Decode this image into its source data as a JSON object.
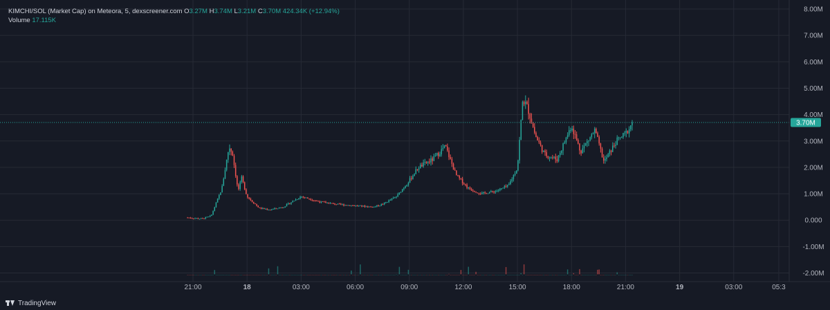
{
  "legend": {
    "symbol": "KIMCHI/SOL (Market Cap) on Meteora, 5, dexscreener.com",
    "o_label": "O",
    "o_value": "3.27M",
    "h_label": "H",
    "h_value": "3.74M",
    "l_label": "L",
    "l_value": "3.21M",
    "c_label": "C",
    "c_value": "3.70M",
    "change": "424.34K (+12.94%)",
    "volume_label": "Volume",
    "volume_value": "17.115K"
  },
  "footer": {
    "brand": "TradingView",
    "icon": "tradingview-logo-icon"
  },
  "colors": {
    "background": "#161a25",
    "grid": "#262a35",
    "up": "#26a69a",
    "down": "#ef5350",
    "axis_text": "#b2b5be",
    "price_tag": "#26a69a"
  },
  "chart_data": {
    "type": "candlestick",
    "current_price_label": "3.70M",
    "current_price": 3.7,
    "y_ticks": [
      "8.00M",
      "7.00M",
      "6.00M",
      "5.00M",
      "4.00M",
      "3.00M",
      "2.00M",
      "1.00M",
      "0.000",
      "-1.00M",
      "-2.00M"
    ],
    "y_tick_values": [
      8,
      7,
      6,
      5,
      4,
      3,
      2,
      1,
      0,
      -1,
      -2
    ],
    "ylim": [
      -2.2,
      8.2
    ],
    "x_ticks": [
      "21:00",
      "18",
      "03:00",
      "06:00",
      "09:00",
      "12:00",
      "15:00",
      "18:00",
      "21:00",
      "19",
      "03:00",
      "05:3"
    ],
    "x_tick_bold": [
      false,
      true,
      false,
      false,
      false,
      false,
      false,
      false,
      false,
      true,
      false,
      false
    ],
    "x_tick_hours": [
      0,
      3,
      6,
      9,
      12,
      15,
      18,
      21,
      24,
      27,
      30,
      32.5
    ],
    "price_anchors": {
      "hours": [
        -0.3,
        0.5,
        1.0,
        1.6,
        2.0,
        2.2,
        2.5,
        2.7,
        3.0,
        3.3,
        3.7,
        4.3,
        5.0,
        6.0,
        7.0,
        8.0,
        9.0,
        10.0,
        10.5,
        11.3,
        12.0,
        12.5,
        13.3,
        14.0,
        14.6,
        15.3,
        16.0,
        16.8,
        17.5,
        18.0,
        18.3,
        18.6,
        19.0,
        19.5,
        20.2,
        21.0,
        21.5,
        22.3,
        22.8,
        23.5,
        24.0,
        24.4
      ],
      "values": [
        0.1,
        0.05,
        0.15,
        1.2,
        2.8,
        2.5,
        1.1,
        1.6,
        0.9,
        0.7,
        0.45,
        0.4,
        0.5,
        0.9,
        0.7,
        0.6,
        0.55,
        0.5,
        0.6,
        0.9,
        1.5,
        2.0,
        2.3,
        2.8,
        1.7,
        1.2,
        1.0,
        1.1,
        1.3,
        2.0,
        4.6,
        4.2,
        3.2,
        2.5,
        2.3,
        3.6,
        2.6,
        3.4,
        2.2,
        3.0,
        3.27,
        3.7
      ]
    },
    "volume_anchors": {
      "hours": [
        -0.3,
        0.5,
        1.0,
        1.5,
        1.8,
        2.0,
        2.3,
        2.6,
        3.0,
        3.5,
        5.0,
        8.0,
        11.0,
        12.0,
        13.5,
        15.0,
        16.5,
        17.8,
        18.2,
        18.5,
        19.0,
        20.0,
        22.0,
        24.4
      ],
      "values": [
        -1.6,
        -1.9,
        -1.5,
        -0.2,
        -1.2,
        0.3,
        -0.5,
        -1.3,
        -1.5,
        -1.8,
        -1.92,
        -1.95,
        -1.93,
        -1.9,
        -1.88,
        -1.9,
        -1.92,
        -1.6,
        -0.7,
        -1.3,
        -1.6,
        -1.85,
        -1.88,
        -1.95
      ]
    },
    "volume_baseline": -2.05
  }
}
